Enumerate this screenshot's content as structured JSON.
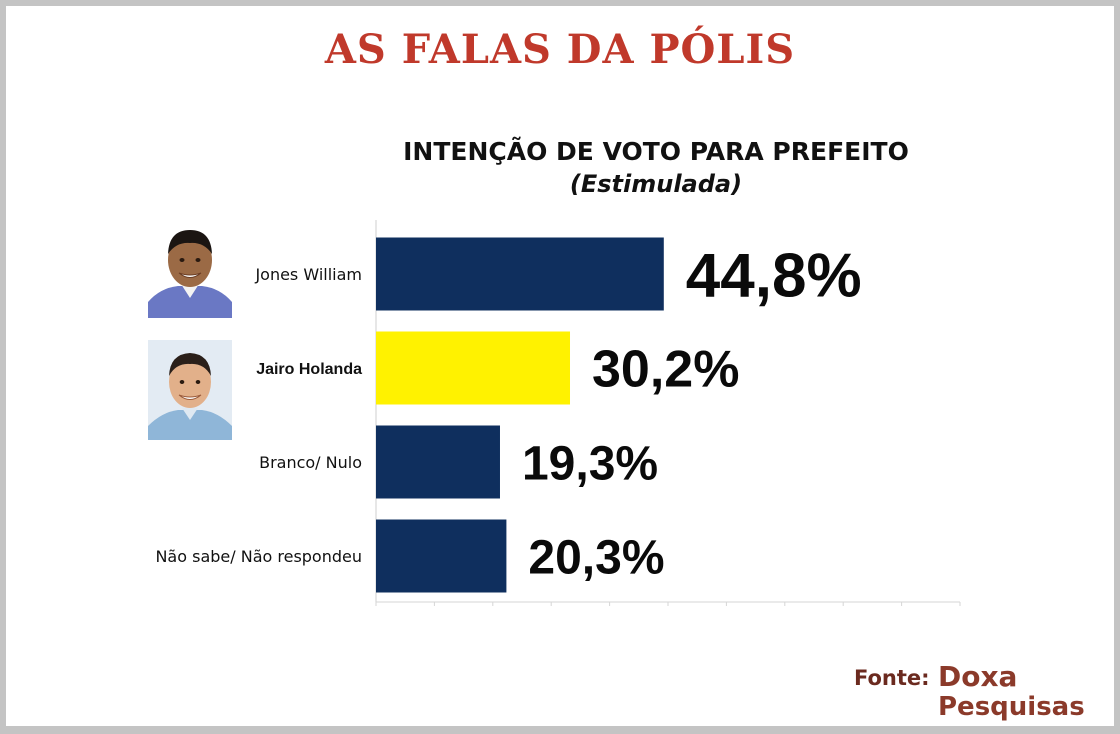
{
  "header": {
    "title": "AS FALAS DA PÓLIS"
  },
  "chart_data": {
    "type": "bar",
    "orientation": "horizontal",
    "title": "INTENÇÃO DE VOTO PARA PREFEITO",
    "subtitle": "(Estimulada)",
    "categories": [
      "Jones William",
      "Jairo Holanda",
      "Branco/ Nulo",
      "Não sabe/ Não respondeu"
    ],
    "values": [
      44.8,
      30.2,
      19.3,
      20.3
    ],
    "value_labels": [
      "44,8%",
      "30,2%",
      "19,3%",
      "20,3%"
    ],
    "bar_colors": [
      "#0f2f5e",
      "#fff200",
      "#0f2f5e",
      "#0f2f5e"
    ],
    "bold_categories": [
      false,
      true,
      false,
      false
    ],
    "xlim": [
      0,
      100
    ],
    "grid": false,
    "legend": "none"
  },
  "candidates": [
    {
      "name": "Jones William",
      "icon": "person-photo-icon"
    },
    {
      "name": "Jairo Holanda",
      "icon": "person-photo-icon"
    }
  ],
  "source": {
    "label": "Fonte:",
    "org_line1": "Doxa",
    "org_line2": "Pesquisas"
  },
  "colors": {
    "title": "#c0392b",
    "bar_dark": "#0f2f5e",
    "bar_yellow": "#fff200",
    "source": "#8b3a2a"
  }
}
